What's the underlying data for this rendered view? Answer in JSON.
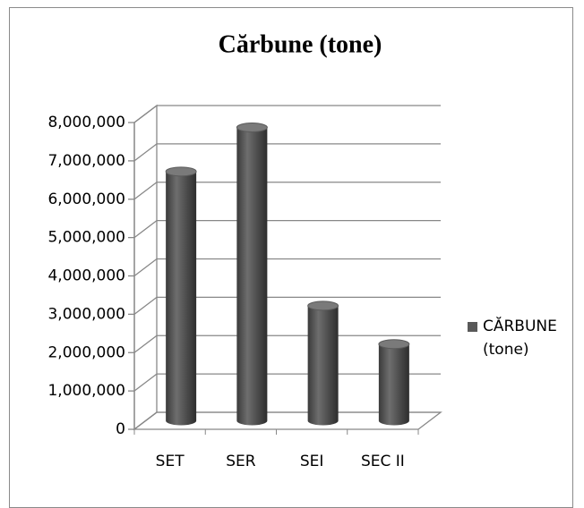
{
  "chart_data": {
    "type": "bar3d",
    "title": "Cărbune (tone)",
    "categories": [
      "SET",
      "SER",
      "SEI",
      "SEC II"
    ],
    "series": [
      {
        "name": "CĂRBUNE (tone)",
        "color": "#595959",
        "values": [
          6500000,
          7650000,
          3000000,
          2000000
        ]
      }
    ],
    "ylim": [
      0,
      8000000
    ],
    "yticks": [
      0,
      {
        "value": 1000000,
        "label": "1,000,000"
      },
      {
        "value": 2000000,
        "label": "2,000,000"
      },
      {
        "value": 3000000,
        "label": "3,000,000"
      },
      {
        "value": 4000000,
        "label": "4,000,000"
      },
      {
        "value": 5000000,
        "label": "5,000,000"
      },
      {
        "value": 6000000,
        "label": "6,000,000"
      },
      {
        "value": 7000000,
        "label": "7,000,000"
      },
      {
        "value": 8000000,
        "label": "8,000,000"
      }
    ],
    "grid": true,
    "legend": "right"
  }
}
